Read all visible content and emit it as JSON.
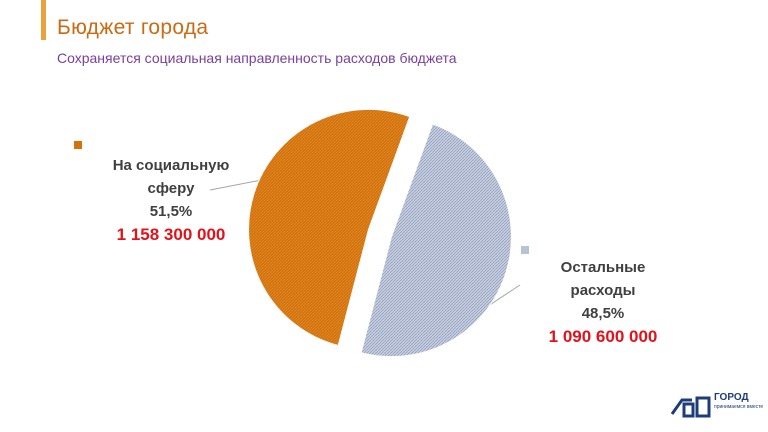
{
  "header": {
    "title": "Бюджет города",
    "subtitle": "Сохраняется социальная направленность расходов бюджета"
  },
  "colors": {
    "accent": "#e8a33a",
    "social": "#d4730c",
    "other": "#b8c2d6",
    "amount": "#e3121a"
  },
  "chart_data": {
    "type": "pie",
    "exploded": true,
    "slices": [
      {
        "label_line1": "На социальную",
        "label_line2": "сферу",
        "percent": "51,5%",
        "value": 51.5,
        "amount": "1 158 300 000",
        "color": "#d4730c"
      },
      {
        "label_line1": "Остальные",
        "label_line2": "расходы",
        "percent": "48,5%",
        "value": 48.5,
        "amount": "1 090 600 000",
        "color": "#b8c2d6"
      }
    ]
  },
  "logo": {
    "text": "ГОРОД",
    "sub": "принимаемся вместе",
    "icon": "city-budget-logo-icon"
  }
}
